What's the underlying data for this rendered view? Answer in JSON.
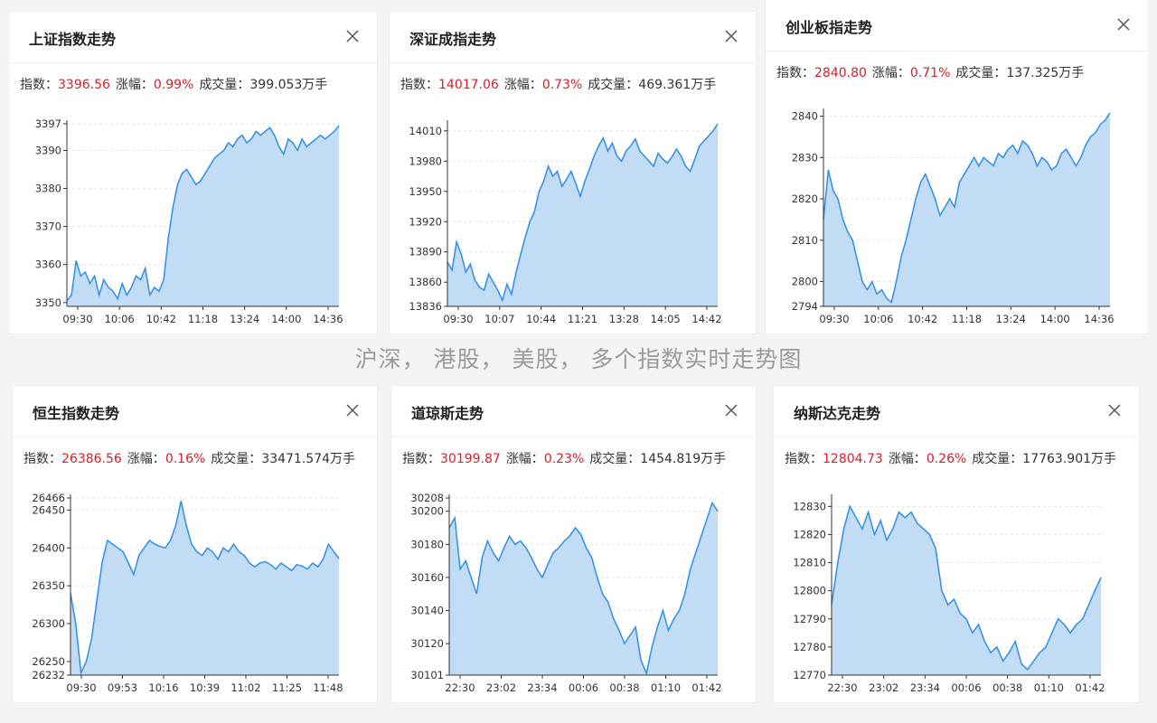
{
  "caption": "沪深， 港股， 美股， 多个指数实时走势图",
  "labels": {
    "index": "指数：",
    "change": "涨幅：",
    "volume": "成交量："
  },
  "colors": {
    "line": "#2f8ee8",
    "area": "#c3dcf6",
    "red": "#d4202c"
  },
  "icons": {
    "close": "close-icon"
  },
  "panels": [
    {
      "title": "上证指数走势",
      "index_value": "3396.56",
      "change": "0.99%",
      "volume": "399.053万手",
      "chart_data": {
        "type": "area",
        "ylim": [
          3349,
          3397
        ],
        "y_ticks": [
          "3397",
          "3390",
          "3380",
          "3370",
          "3360",
          "3350"
        ],
        "x_ticks": [
          "09:30",
          "10:06",
          "10:42",
          "11:18",
          "13:24",
          "14:00",
          "14:36"
        ],
        "y": [
          3350.5,
          3352,
          3361,
          3357,
          3358,
          3355,
          3357,
          3352,
          3356,
          3354,
          3353,
          3351,
          3355,
          3352,
          3354,
          3357,
          3356,
          3359,
          3352,
          3354,
          3353,
          3356,
          3367,
          3375,
          3381,
          3384,
          3385,
          3383,
          3381,
          3382,
          3384,
          3386,
          3388,
          3389,
          3390,
          3392,
          3391,
          3393,
          3394,
          3392,
          3393,
          3395,
          3394,
          3395,
          3396,
          3394,
          3391,
          3389,
          3393,
          3392,
          3390,
          3393,
          3391,
          3392,
          3393,
          3394,
          3393,
          3394,
          3395,
          3396.5
        ]
      }
    },
    {
      "title": "深证成指走势",
      "index_value": "14017.06",
      "change": "0.73%",
      "volume": "469.361万手",
      "chart_data": {
        "type": "area",
        "ylim": [
          13836,
          14017
        ],
        "y_ticks": [
          "14010",
          "13980",
          "13950",
          "13920",
          "13890",
          "13860",
          "13836"
        ],
        "x_ticks": [
          "09:30",
          "10:07",
          "10:44",
          "11:21",
          "13:28",
          "14:05",
          "14:42"
        ],
        "y": [
          13880,
          13872,
          13900,
          13888,
          13870,
          13878,
          13862,
          13855,
          13852,
          13868,
          13860,
          13852,
          13842,
          13858,
          13848,
          13870,
          13888,
          13905,
          13920,
          13930,
          13950,
          13960,
          13975,
          13965,
          13970,
          13955,
          13962,
          13970,
          13958,
          13945,
          13960,
          13972,
          13985,
          13995,
          14003,
          13990,
          13998,
          13985,
          13980,
          13990,
          13995,
          14002,
          13990,
          13985,
          13980,
          13975,
          13988,
          13982,
          13978,
          13984,
          13992,
          13985,
          13975,
          13970,
          13982,
          13995,
          14000,
          14005,
          14010,
          14017
        ]
      }
    },
    {
      "title": "创业板指走势",
      "index_value": "2840.80",
      "change": "0.71%",
      "volume": "137.325万手",
      "chart_data": {
        "type": "area",
        "ylim": [
          2794,
          2841
        ],
        "y_ticks": [
          "2840",
          "2830",
          "2820",
          "2810",
          "2800",
          "2794"
        ],
        "x_ticks": [
          "09:30",
          "10:06",
          "10:42",
          "11:18",
          "13:24",
          "14:00",
          "14:36"
        ],
        "y": [
          2815,
          2827,
          2822,
          2820,
          2815,
          2812,
          2810,
          2805,
          2800,
          2798,
          2800,
          2797,
          2798,
          2796,
          2795,
          2800,
          2806,
          2810,
          2815,
          2820,
          2824,
          2826,
          2823,
          2820,
          2816,
          2818,
          2820,
          2818,
          2824,
          2826,
          2828,
          2830,
          2828,
          2830,
          2829,
          2828,
          2831,
          2830,
          2832,
          2833,
          2831,
          2834,
          2833,
          2831,
          2828,
          2830,
          2829,
          2827,
          2828,
          2831,
          2832,
          2830,
          2828,
          2830,
          2833,
          2835,
          2836,
          2838,
          2839,
          2840.8
        ]
      }
    },
    {
      "title": "恒生指数走势",
      "index_value": "26386.56",
      "change": "0.16%",
      "volume": "33471.574万手",
      "chart_data": {
        "type": "area",
        "ylim": [
          26232,
          26466
        ],
        "y_ticks": [
          "26466",
          "26450",
          "26400",
          "26350",
          "26300",
          "26250",
          "26232"
        ],
        "x_ticks": [
          "09:30",
          "09:53",
          "10:16",
          "10:39",
          "11:02",
          "11:25",
          "11:48"
        ],
        "y": [
          26340,
          26300,
          26235,
          26250,
          26280,
          26330,
          26380,
          26410,
          26405,
          26400,
          26395,
          26380,
          26365,
          26390,
          26400,
          26410,
          26405,
          26402,
          26400,
          26410,
          26430,
          26462,
          26430,
          26405,
          26395,
          26390,
          26400,
          26395,
          26385,
          26400,
          26395,
          26405,
          26395,
          26390,
          26380,
          26375,
          26380,
          26382,
          26378,
          26372,
          26380,
          26375,
          26370,
          26378,
          26376,
          26372,
          26380,
          26375,
          26385,
          26405,
          26395,
          26386
        ]
      }
    },
    {
      "title": "道琼斯走势",
      "index_value": "30199.87",
      "change": "0.23%",
      "volume": "1454.819万手",
      "chart_data": {
        "type": "area",
        "ylim": [
          30101,
          30208
        ],
        "y_ticks": [
          "30208",
          "30200",
          "30180",
          "30160",
          "30140",
          "30120",
          "30101"
        ],
        "x_ticks": [
          "22:30",
          "23:02",
          "23:34",
          "00:06",
          "00:38",
          "01:10",
          "01:42"
        ],
        "y": [
          30190,
          30196,
          30165,
          30170,
          30160,
          30150,
          30172,
          30182,
          30175,
          30170,
          30178,
          30185,
          30180,
          30182,
          30178,
          30172,
          30165,
          30160,
          30168,
          30175,
          30178,
          30182,
          30185,
          30190,
          30186,
          30178,
          30172,
          30160,
          30150,
          30145,
          30135,
          30128,
          30120,
          30125,
          30130,
          30110,
          30102,
          30118,
          30130,
          30140,
          30128,
          30135,
          30140,
          30150,
          30165,
          30175,
          30185,
          30195,
          30205,
          30200
        ]
      }
    },
    {
      "title": "纳斯达克走势",
      "index_value": "12804.73",
      "change": "0.26%",
      "volume": "17763.901万手",
      "chart_data": {
        "type": "area",
        "ylim": [
          12770,
          12833
        ],
        "y_ticks": [
          "12830",
          "12820",
          "12810",
          "12800",
          "12790",
          "12780",
          "12770"
        ],
        "x_ticks": [
          "22:30",
          "23:02",
          "23:34",
          "00:06",
          "00:38",
          "01:10",
          "01:42"
        ],
        "y": [
          12795,
          12810,
          12822,
          12830,
          12826,
          12822,
          12828,
          12820,
          12825,
          12818,
          12822,
          12828,
          12826,
          12828,
          12824,
          12822,
          12820,
          12815,
          12800,
          12795,
          12797,
          12792,
          12790,
          12785,
          12788,
          12782,
          12778,
          12780,
          12775,
          12778,
          12782,
          12774,
          12772,
          12775,
          12778,
          12780,
          12785,
          12790,
          12788,
          12785,
          12788,
          12790,
          12795,
          12800,
          12804.7
        ]
      }
    }
  ]
}
